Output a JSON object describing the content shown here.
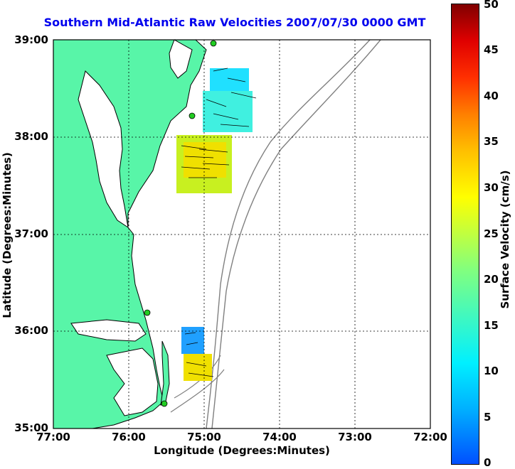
{
  "title": "Southern Mid-Atlantic Raw Velocities 2007/07/30 0000 GMT",
  "xlabel": "Longitude (Degrees:Minutes)",
  "ylabel": "Latitude (Degrees:Minutes)",
  "colorbar_label": "Surface Velocity (cm/s)",
  "x_ticks": [
    "77:00",
    "76:00",
    "75:00",
    "74:00",
    "73:00",
    "72:00"
  ],
  "y_ticks": [
    "39:00",
    "38:00",
    "37:00",
    "36:00",
    "35:00"
  ],
  "colorbar_ticks": [
    "50",
    "45",
    "40",
    "35",
    "30",
    "25",
    "20",
    "15",
    "10",
    "5",
    "0"
  ],
  "colors": {
    "land": "#58f5a8",
    "coast": "#000000",
    "bathymetry": "#808080",
    "title": "#0000ee",
    "station": "#22cc22"
  },
  "chart_data": {
    "type": "map",
    "xlim": [
      -77,
      -72
    ],
    "ylim": [
      35,
      39
    ],
    "color_scale": [
      0,
      50
    ],
    "grid": true,
    "stations": [
      {
        "lon": -74.87,
        "lat": 38.97
      },
      {
        "lon": -75.15,
        "lat": 38.22
      },
      {
        "lon": -75.68,
        "lat": 36.2
      },
      {
        "lon": -75.45,
        "lat": 35.27
      }
    ],
    "velocity_patches": [
      {
        "lon_range": [
          -74.9,
          -74.35
        ],
        "lat_range": [
          38.55,
          38.75
        ],
        "velocity": 10
      },
      {
        "lon_range": [
          -75.0,
          -74.4
        ],
        "lat_range": [
          38.08,
          38.55
        ],
        "velocity": 13
      },
      {
        "lon_range": [
          -75.3,
          -74.65
        ],
        "lat_range": [
          37.6,
          38.05
        ],
        "velocity": 25
      },
      {
        "lon_range": [
          -75.35,
          -75.0
        ],
        "lat_range": [
          35.75,
          36.05
        ],
        "velocity": 10
      },
      {
        "lon_range": [
          -75.25,
          -74.85
        ],
        "lat_range": [
          35.45,
          35.75
        ],
        "velocity": 26
      }
    ]
  }
}
